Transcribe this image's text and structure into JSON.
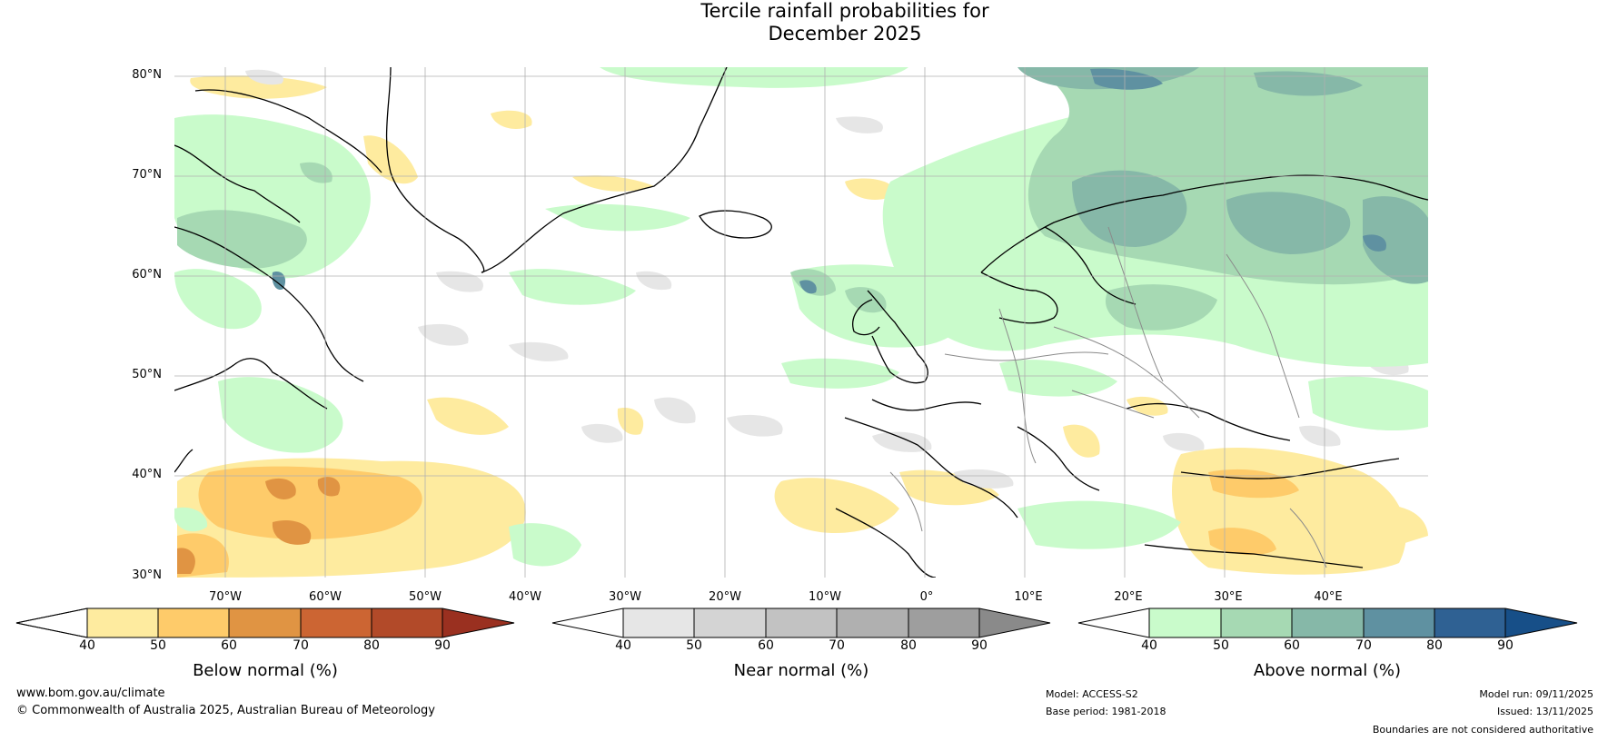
{
  "title_line1": "Tercile rainfall probabilities for",
  "title_line2": "December 2025",
  "map": {
    "lat_labels": [
      "80°N",
      "70°N",
      "60°N",
      "50°N",
      "40°N",
      "30°N"
    ],
    "lon_labels": [
      "70°W",
      "60°W",
      "50°W",
      "40°W",
      "30°W",
      "20°W",
      "10°W",
      "0°",
      "10°E",
      "20°E",
      "30°E",
      "40°E"
    ],
    "categories": [
      "below-normal",
      "near-normal",
      "above-normal"
    ]
  },
  "colorbars": [
    {
      "title": "Below normal (%)",
      "ticks": [
        "40",
        "50",
        "60",
        "70",
        "80",
        "90"
      ],
      "colors": [
        "#ffffff",
        "#feeb9f",
        "#fecb6a",
        "#e09443",
        "#cc6533",
        "#b24a29",
        "#9a3020"
      ]
    },
    {
      "title": "Near normal (%)",
      "ticks": [
        "40",
        "50",
        "60",
        "70",
        "80",
        "90"
      ],
      "colors": [
        "#ffffff",
        "#e6e6e6",
        "#d4d4d4",
        "#c2c2c2",
        "#b0b0b0",
        "#9e9e9e",
        "#8a8a8a"
      ]
    },
    {
      "title": "Above normal (%)",
      "ticks": [
        "40",
        "50",
        "60",
        "70",
        "80",
        "90"
      ],
      "colors": [
        "#ffffff",
        "#c9fbcb",
        "#a6d9b3",
        "#86b8a8",
        "#5f91a1",
        "#2f6193",
        "#174f88"
      ]
    }
  ],
  "footer": {
    "website": "www.bom.gov.au/climate",
    "copyright": "© Commonwealth of Australia 2025, Australian Bureau of Meteorology",
    "model": "Model: ACCESS-S2",
    "base_period": "Base period: 1981-2018",
    "model_run": "Model run: 09/11/2025",
    "issued": "Issued: 13/11/2025",
    "disclaimer": "Boundaries are not considered authoritative"
  }
}
